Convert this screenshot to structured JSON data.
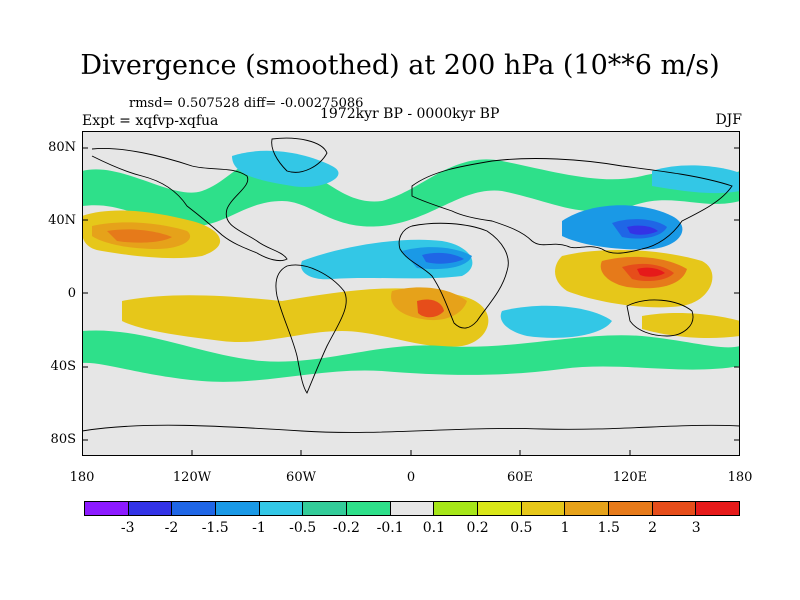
{
  "title": "Divergence (smoothed) at 200 hPa (10**6 m/s)",
  "stats_text": "rmsd= 0.507528 diff= -0.00275086",
  "experiment_text": "Expt = xqfvp-xqfua",
  "period_text": "1972kyr BP - 0000kyr BP",
  "season": "DJF",
  "map": {
    "lat_labels": [
      "80N",
      "40N",
      "0",
      "40S",
      "80S"
    ],
    "lon_labels": [
      "180",
      "120W",
      "60W",
      "0",
      "60E",
      "120E",
      "180"
    ],
    "background_color": "#e6e6e6"
  },
  "legend": {
    "colors": [
      "#8c1aff",
      "#3333e6",
      "#1f66e6",
      "#1a99e6",
      "#33c7e6",
      "#33cc99",
      "#2ee08a",
      "#e6e6e6",
      "#a6e619",
      "#d9e619",
      "#e6c71a",
      "#e6a21a",
      "#e67a1a",
      "#e64d1a",
      "#e61a1a"
    ],
    "labels": [
      "-3",
      "-2",
      "-1.5",
      "-1",
      "-0.5",
      "-0.2",
      "-0.1",
      "0.1",
      "0.2",
      "0.5",
      "1",
      "1.5",
      "2",
      "3"
    ]
  }
}
